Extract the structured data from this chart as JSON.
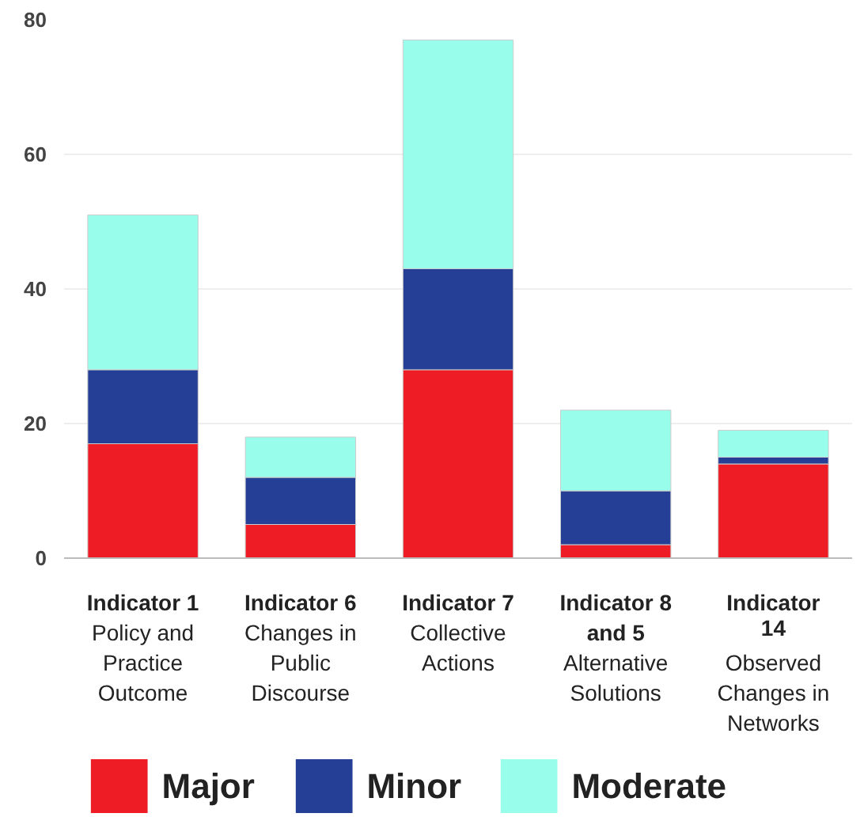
{
  "chart_data": {
    "type": "bar",
    "stacked": true,
    "categories": [
      "Indicator 1\nPolicy and Practice Outcome",
      "Indicator 6\nChanges in Public Discourse",
      "Indicator 7\nCollective Actions",
      "Indicator 8 and 5\nAlternative Solutions",
      "Indicator 14\nObserved Changes in Networks"
    ],
    "series": [
      {
        "name": "Major",
        "color": "#ee1c25",
        "values": [
          17,
          5,
          28,
          2,
          14
        ]
      },
      {
        "name": "Minor",
        "color": "#263f96",
        "values": [
          11,
          7,
          15,
          8,
          1
        ]
      },
      {
        "name": "Moderate",
        "color": "#99fdec",
        "values": [
          23,
          6,
          34,
          12,
          4
        ]
      }
    ],
    "ylim": [
      0,
      80
    ],
    "yticks": [
      0,
      20,
      40,
      60,
      80
    ],
    "grid": "y",
    "legend": "bottom"
  }
}
